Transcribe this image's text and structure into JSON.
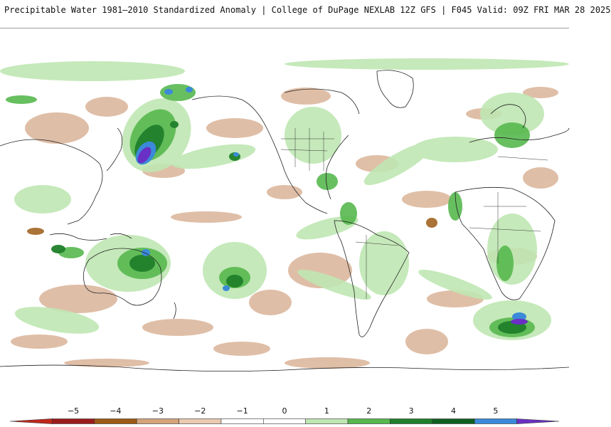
{
  "header": {
    "title": "Precipitable Water 1981–2010 Standardized Anomaly | College of DuPage NEXLAB  12Z GFS | F045 Valid: 09Z FRI MAR 28 2025"
  },
  "map": {
    "projection": "global equirectangular, Pacific-centered",
    "colors": {
      "background": "#ffffff",
      "coastline": "#222222",
      "dry_light": "#e8c9ad",
      "dry_mid": "#d5a98a",
      "moist_light": "#bfe7b3",
      "moist_mid": "#57b84f",
      "moist_dark": "#1f7f2a",
      "moist_deep": "#0f5f1f",
      "extreme_blue": "#3b8ad9",
      "extreme_purple": "#6a2fc4"
    }
  },
  "colorbar": {
    "ticks": [
      "−5",
      "−4",
      "−3",
      "−2",
      "−1",
      "0",
      "1",
      "2",
      "3",
      "4",
      "5"
    ],
    "colors": [
      "#c2261b",
      "#9b1b1b",
      "#9b5a14",
      "#d5a47a",
      "#eacab1",
      "#ffffff",
      "#ffffff",
      "#bfe7b3",
      "#57b84f",
      "#1f7f2a",
      "#0f5f1f",
      "#3b8ad9",
      "#6a2fc4"
    ]
  }
}
